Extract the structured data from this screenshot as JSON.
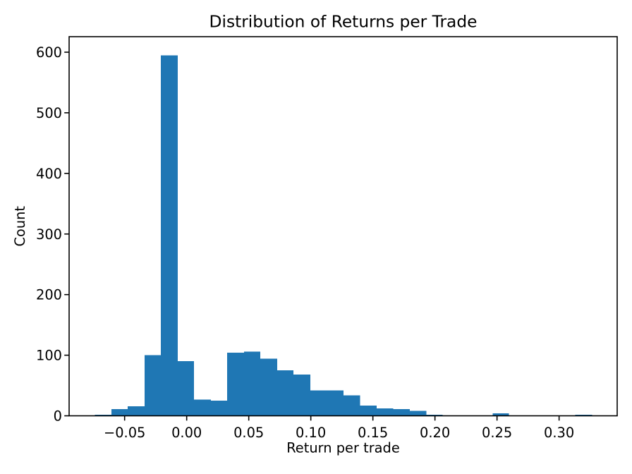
{
  "figure": {
    "background": "#ffffff"
  },
  "chart_data": {
    "type": "bar",
    "subtype": "histogram",
    "title": "Distribution of Returns per Trade",
    "xlabel": "Return per trade",
    "ylabel": "Count",
    "bar_color": "#1f77b4",
    "axis_color": "#000000",
    "text_color": "#000000",
    "grid": false,
    "legend": null,
    "n_bins": 30,
    "bin_edges": [
      -0.0741,
      -0.0607,
      -0.0474,
      -0.034,
      -0.0207,
      -0.0073,
      0.006,
      0.0194,
      0.0327,
      0.0461,
      0.0594,
      0.0728,
      0.0861,
      0.0995,
      0.1128,
      0.1262,
      0.1396,
      0.1529,
      0.1663,
      0.1796,
      0.193,
      0.2063,
      0.2197,
      0.233,
      0.2464,
      0.2597,
      0.2731,
      0.2864,
      0.2998,
      0.3131,
      0.3265
    ],
    "counts": [
      2,
      11,
      16,
      100,
      595,
      90,
      27,
      25,
      104,
      106,
      94,
      75,
      68,
      42,
      42,
      34,
      17,
      12,
      11,
      8,
      2,
      0,
      0,
      0,
      4,
      0,
      0,
      0,
      0,
      2
    ],
    "xlim": [
      -0.0947,
      0.3468
    ],
    "ylim": [
      0,
      625.6
    ],
    "xticks": {
      "values": [
        -0.05,
        0.0,
        0.05,
        0.1,
        0.15,
        0.2,
        0.25,
        0.3
      ],
      "labels": [
        "−0.05",
        "0.00",
        "0.05",
        "0.10",
        "0.15",
        "0.20",
        "0.25",
        "0.30"
      ]
    },
    "yticks": {
      "values": [
        0,
        100,
        200,
        300,
        400,
        500,
        600
      ],
      "labels": [
        "0",
        "100",
        "200",
        "300",
        "400",
        "500",
        "600"
      ]
    }
  }
}
